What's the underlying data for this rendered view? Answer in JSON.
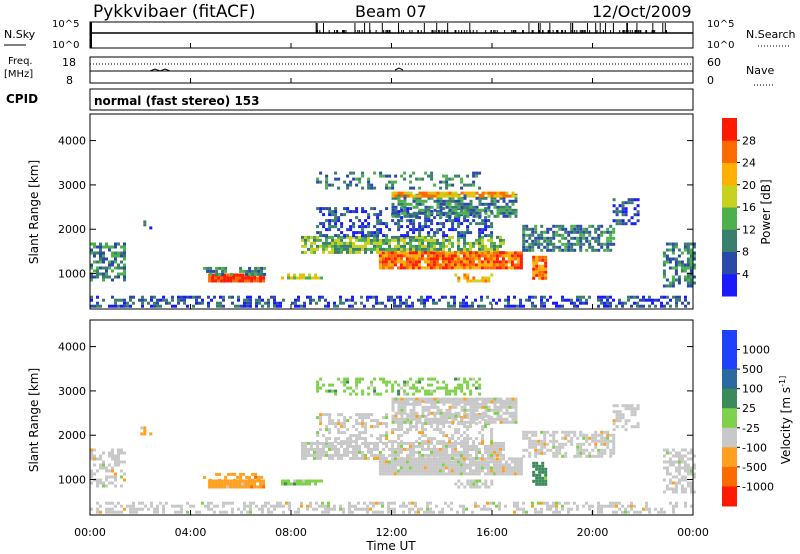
{
  "header": {
    "station": "Pykkvibaer (fitACF)",
    "beam": "Beam 07",
    "date": "12/Oct/2009"
  },
  "sky_panel": {
    "left_label": "N.Sky",
    "left_ticks": [
      "10^5",
      "10^0"
    ],
    "right_label": "N.Search",
    "right_ticks": [
      "10^5",
      "10^0"
    ]
  },
  "freq_panel": {
    "left_label_line1": "Freq.",
    "left_label_line2": "[MHz]",
    "left_ticks": [
      "18",
      "8"
    ],
    "right_label": "Nave",
    "right_ticks": [
      "60",
      "0"
    ]
  },
  "cpid": {
    "label": "CPID",
    "value": "normal (fast stereo) 153"
  },
  "chart_data": [
    {
      "type": "heatmap",
      "name": "power",
      "ylabel": "Slant Range [km]",
      "ylim": [
        200,
        4600
      ],
      "y_ticks": [
        1000,
        2000,
        3000,
        4000
      ],
      "xlim_hours": [
        0,
        24
      ],
      "colorbar_label": "Power [dB]",
      "colorbar_ticks": [
        4,
        8,
        12,
        16,
        20,
        24,
        28
      ],
      "colorbar_range": [
        0,
        32
      ],
      "colors": [
        "#1a1aff",
        "#2b4aa8",
        "#3a7f6e",
        "#4db04d",
        "#c8d21e",
        "#ffb000",
        "#ff6a00",
        "#ff1a00"
      ]
    },
    {
      "type": "heatmap",
      "name": "velocity",
      "ylabel": "Slant Range [km]",
      "ylim": [
        200,
        4600
      ],
      "y_ticks": [
        1000,
        2000,
        3000,
        4000
      ],
      "xlim_hours": [
        0,
        24
      ],
      "x_ticks": [
        "00:00",
        "04:00",
        "08:00",
        "12:00",
        "16:00",
        "20:00",
        "00:00"
      ],
      "xlabel": "Time UT",
      "colorbar_label": "Velocity [m s^-1]",
      "colorbar_ticks": [
        "1000",
        "500",
        "100",
        "25",
        "-25",
        "-100",
        "-500",
        "-1000"
      ],
      "colors": [
        "#2040ff",
        "#2a6aa0",
        "#3a8a5a",
        "#7fd04a",
        "#c8c8c8",
        "#ffa020",
        "#ff6a00",
        "#ff1a00"
      ]
    }
  ]
}
